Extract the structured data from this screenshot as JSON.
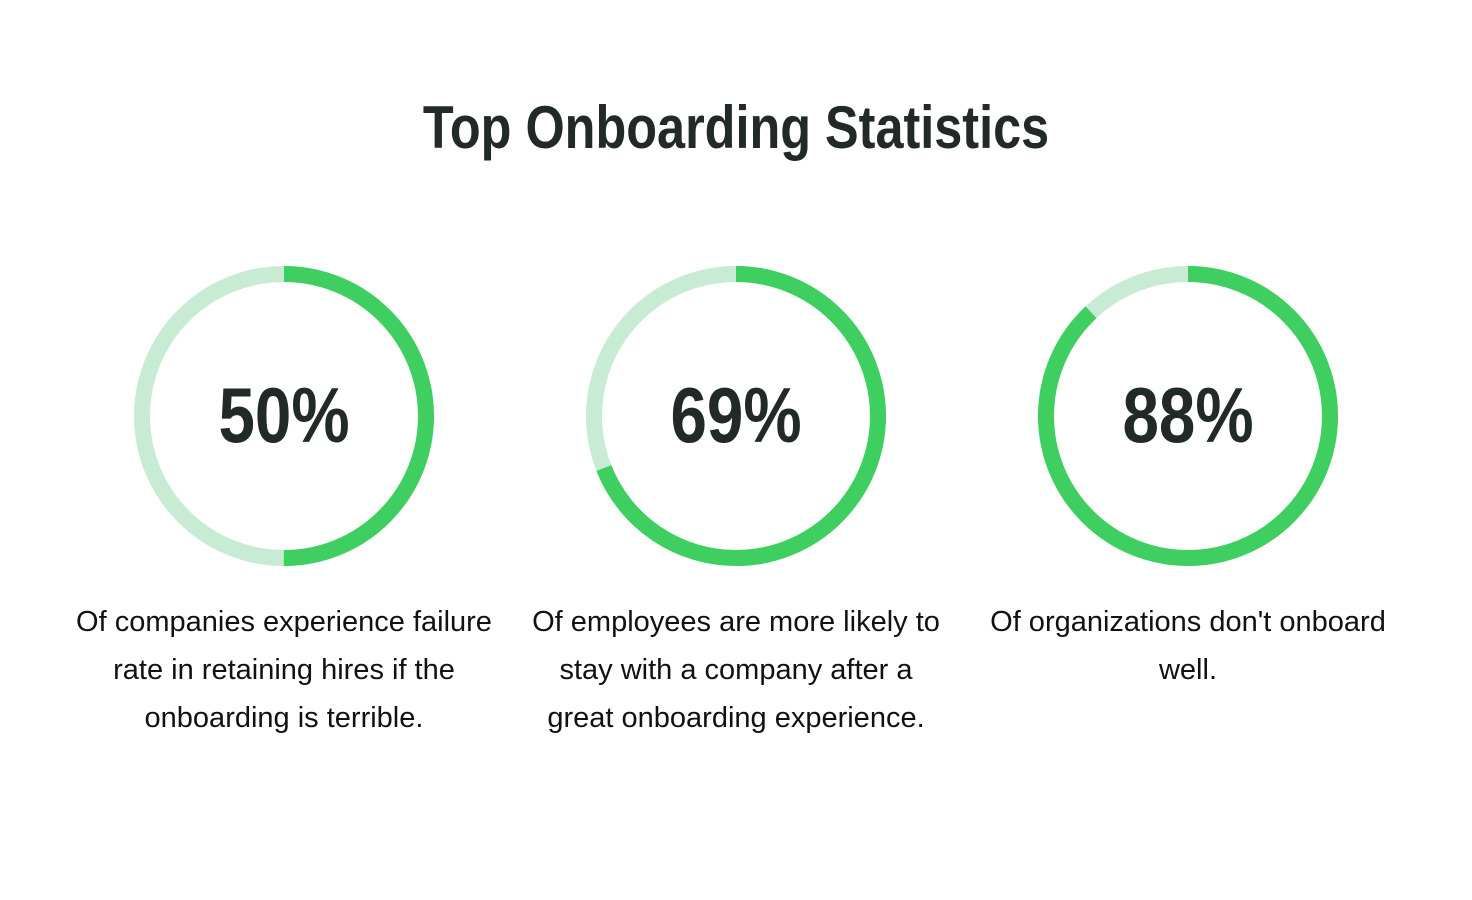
{
  "title": "Top Onboarding Statistics",
  "chart_data": [
    {
      "type": "progress-ring",
      "values": [
        50
      ],
      "value_labels": [
        "50%"
      ],
      "ylim": [
        0,
        100
      ],
      "color": "#3ecf60",
      "track_color": "#c8ecd3",
      "caption": "Of companies experience failure rate in retaining hires if the onboarding is terrible."
    },
    {
      "type": "progress-ring",
      "values": [
        69
      ],
      "value_labels": [
        "69%"
      ],
      "ylim": [
        0,
        100
      ],
      "color": "#3ecf60",
      "track_color": "#c8ecd3",
      "caption": "Of employees are more likely to stay with a company after a great onboarding experience."
    },
    {
      "type": "progress-ring",
      "values": [
        88
      ],
      "value_labels": [
        "88%"
      ],
      "ylim": [
        0,
        100
      ],
      "color": "#3ecf60",
      "track_color": "#c8ecd3",
      "caption": "Of organizations don't onboard well."
    }
  ]
}
